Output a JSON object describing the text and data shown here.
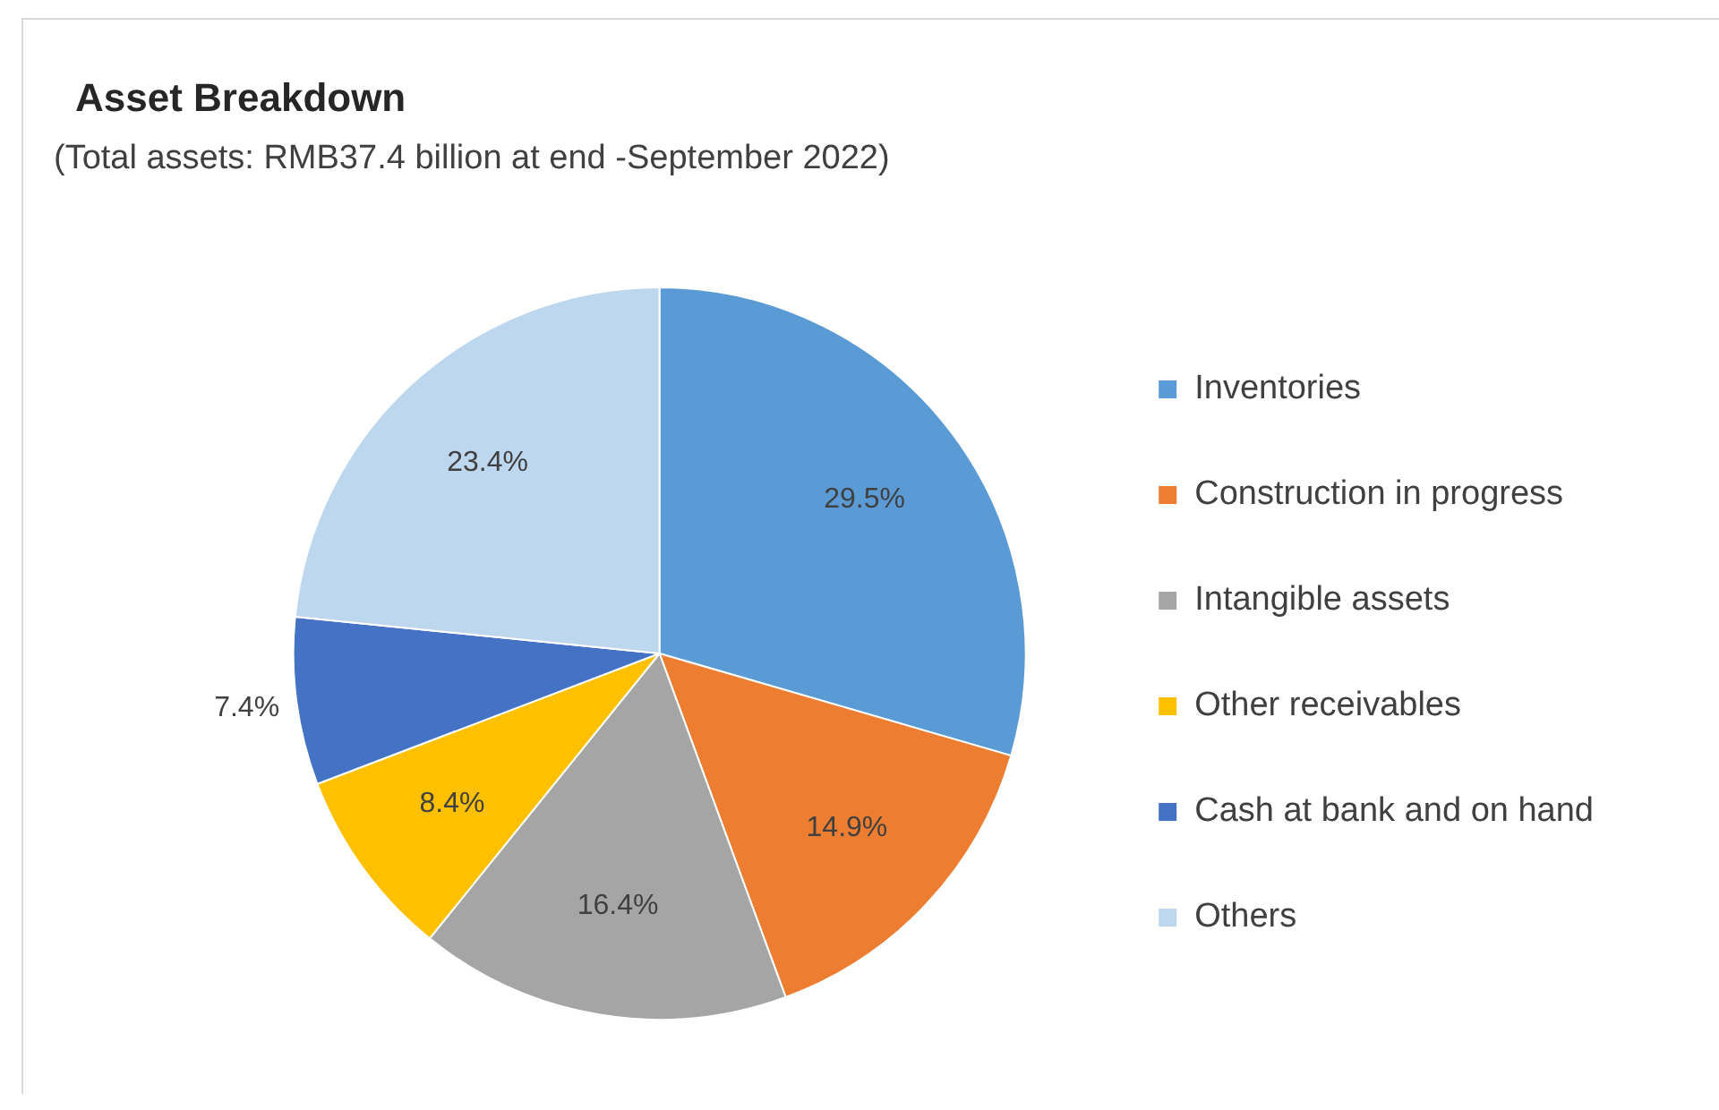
{
  "chart_data": {
    "type": "pie",
    "title": "Asset Breakdown",
    "subtitle": "(Total  assets: RMB37.4 billion at end -September 2022)",
    "categories": [
      "Inventories",
      "Construction in progress",
      "Intangible assets",
      "Other receivables",
      "Cash at bank and on hand",
      "Others"
    ],
    "values": [
      29.5,
      14.9,
      16.4,
      8.4,
      7.4,
      23.4
    ],
    "value_labels": [
      "29.5%",
      "14.9%",
      "16.4%",
      "8.4%",
      "7.4%",
      "23.4%"
    ],
    "colors": [
      "#5b9bd5",
      "#ed7d31",
      "#a5a5a5",
      "#ffc000",
      "#4472c4",
      "#bdd7ee"
    ],
    "legend": "right"
  }
}
